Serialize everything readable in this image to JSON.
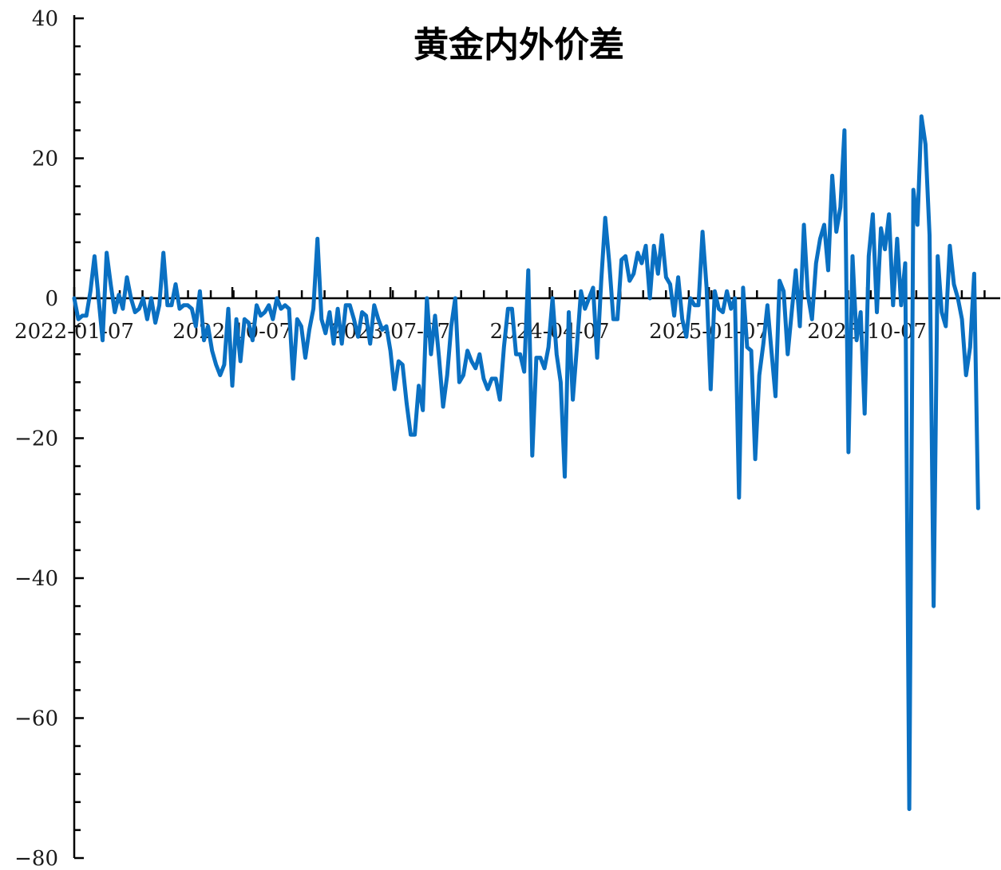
{
  "chart_data": {
    "type": "line",
    "title": "黄金内外价差",
    "xlabel": "",
    "ylabel": "",
    "ylim": [
      -80,
      40
    ],
    "y_ticks": [
      {
        "value": 40,
        "label": "40"
      },
      {
        "value": 20,
        "label": "20"
      },
      {
        "value": 0,
        "label": "0"
      },
      {
        "value": -20,
        "label": "−20"
      },
      {
        "value": -40,
        "label": "−40"
      },
      {
        "value": -60,
        "label": "−60"
      },
      {
        "value": -80,
        "label": "−80"
      }
    ],
    "xlim": [
      "2022-01-07",
      "2026-05-25"
    ],
    "x_ticks": [
      "2022-01-07",
      "2022-10-07",
      "2023-07-07",
      "2024-04-07",
      "2025-01-07",
      "2025-10-07"
    ],
    "grid": false,
    "legend": "none",
    "colors": {
      "series": "#0a70c2",
      "axis": "#000000"
    },
    "series": [
      {
        "name": "",
        "points": [
          [
            "2022-01-07",
            0
          ],
          [
            "2022-01-14",
            -3
          ],
          [
            "2022-01-21",
            -2.5
          ],
          [
            "2022-01-28",
            -2.5
          ],
          [
            "2022-02-04",
            1
          ],
          [
            "2022-02-11",
            6
          ],
          [
            "2022-02-18",
            0
          ],
          [
            "2022-02-25",
            -6
          ],
          [
            "2022-03-04",
            6.5
          ],
          [
            "2022-03-11",
            2
          ],
          [
            "2022-03-18",
            -2
          ],
          [
            "2022-03-25",
            0.5
          ],
          [
            "2022-04-01",
            -1.5
          ],
          [
            "2022-04-08",
            3
          ],
          [
            "2022-04-15",
            0
          ],
          [
            "2022-04-22",
            -2
          ],
          [
            "2022-04-29",
            -1.5
          ],
          [
            "2022-05-06",
            0
          ],
          [
            "2022-05-13",
            -3
          ],
          [
            "2022-05-20",
            0
          ],
          [
            "2022-05-27",
            -3.5
          ],
          [
            "2022-06-03",
            -1
          ],
          [
            "2022-06-10",
            6.5
          ],
          [
            "2022-06-17",
            -1
          ],
          [
            "2022-06-24",
            -1
          ],
          [
            "2022-07-01",
            2
          ],
          [
            "2022-07-08",
            -1.5
          ],
          [
            "2022-07-15",
            -1
          ],
          [
            "2022-07-22",
            -1
          ],
          [
            "2022-07-29",
            -1.5
          ],
          [
            "2022-08-05",
            -4
          ],
          [
            "2022-08-12",
            1
          ],
          [
            "2022-08-19",
            -6
          ],
          [
            "2022-08-26",
            -4
          ],
          [
            "2022-09-02",
            -7.5
          ],
          [
            "2022-09-09",
            -9.5
          ],
          [
            "2022-09-16",
            -11
          ],
          [
            "2022-09-23",
            -9.5
          ],
          [
            "2022-09-30",
            -1.5
          ],
          [
            "2022-10-07",
            -12.5
          ],
          [
            "2022-10-14",
            -3
          ],
          [
            "2022-10-21",
            -9
          ],
          [
            "2022-10-28",
            -3
          ],
          [
            "2022-11-04",
            -3.5
          ],
          [
            "2022-11-11",
            -6
          ],
          [
            "2022-11-18",
            -1
          ],
          [
            "2022-11-25",
            -2.5
          ],
          [
            "2022-12-02",
            -2
          ],
          [
            "2022-12-09",
            -1
          ],
          [
            "2022-12-16",
            -3
          ],
          [
            "2022-12-23",
            0
          ],
          [
            "2022-12-30",
            -1.5
          ],
          [
            "2023-01-06",
            -1
          ],
          [
            "2023-01-13",
            -1.5
          ],
          [
            "2023-01-20",
            -11.5
          ],
          [
            "2023-01-27",
            -3
          ],
          [
            "2023-02-03",
            -4
          ],
          [
            "2023-02-10",
            -8.5
          ],
          [
            "2023-02-17",
            -4.5
          ],
          [
            "2023-02-24",
            -1.5
          ],
          [
            "2023-03-03",
            8.5
          ],
          [
            "2023-03-10",
            -3
          ],
          [
            "2023-03-17",
            -5
          ],
          [
            "2023-03-24",
            -2
          ],
          [
            "2023-03-31",
            -6.5
          ],
          [
            "2023-04-07",
            -1.5
          ],
          [
            "2023-04-14",
            -6.5
          ],
          [
            "2023-04-21",
            -1
          ],
          [
            "2023-04-28",
            -1
          ],
          [
            "2023-05-05",
            -3
          ],
          [
            "2023-05-12",
            -5.5
          ],
          [
            "2023-05-19",
            -2
          ],
          [
            "2023-05-26",
            -2.5
          ],
          [
            "2023-06-02",
            -6.5
          ],
          [
            "2023-06-09",
            -1
          ],
          [
            "2023-06-16",
            -3
          ],
          [
            "2023-06-23",
            -4.5
          ],
          [
            "2023-06-30",
            -4
          ],
          [
            "2023-07-07",
            -7.5
          ],
          [
            "2023-07-14",
            -13
          ],
          [
            "2023-07-21",
            -9
          ],
          [
            "2023-07-28",
            -9.5
          ],
          [
            "2023-08-04",
            -15
          ],
          [
            "2023-08-11",
            -19.5
          ],
          [
            "2023-08-18",
            -19.5
          ],
          [
            "2023-08-25",
            -12.5
          ],
          [
            "2023-09-01",
            -16
          ],
          [
            "2023-09-08",
            0
          ],
          [
            "2023-09-15",
            -8
          ],
          [
            "2023-09-22",
            -2.5
          ],
          [
            "2023-09-29",
            -8.5
          ],
          [
            "2023-10-06",
            -15.5
          ],
          [
            "2023-10-13",
            -11
          ],
          [
            "2023-10-20",
            -4
          ],
          [
            "2023-10-27",
            0
          ],
          [
            "2023-11-03",
            -12
          ],
          [
            "2023-11-10",
            -11
          ],
          [
            "2023-11-17",
            -7.5
          ],
          [
            "2023-11-24",
            -9
          ],
          [
            "2023-12-01",
            -10
          ],
          [
            "2023-12-08",
            -8
          ],
          [
            "2023-12-15",
            -11.5
          ],
          [
            "2023-12-22",
            -13
          ],
          [
            "2023-12-29",
            -11.5
          ],
          [
            "2024-01-05",
            -11.5
          ],
          [
            "2024-01-12",
            -14.5
          ],
          [
            "2024-01-19",
            -7
          ],
          [
            "2024-01-26",
            -1.5
          ],
          [
            "2024-02-02",
            -1.5
          ],
          [
            "2024-02-09",
            -8
          ],
          [
            "2024-02-16",
            -8
          ],
          [
            "2024-02-23",
            -10.5
          ],
          [
            "2024-03-01",
            4
          ],
          [
            "2024-03-08",
            -22.5
          ],
          [
            "2024-03-15",
            -8.5
          ],
          [
            "2024-03-22",
            -8.5
          ],
          [
            "2024-03-29",
            -10
          ],
          [
            "2024-04-05",
            -7
          ],
          [
            "2024-04-12",
            0
          ],
          [
            "2024-04-19",
            -8
          ],
          [
            "2024-04-26",
            -12
          ],
          [
            "2024-05-03",
            -25.5
          ],
          [
            "2024-05-10",
            -2
          ],
          [
            "2024-05-17",
            -14.5
          ],
          [
            "2024-05-24",
            -7
          ],
          [
            "2024-05-31",
            1
          ],
          [
            "2024-06-07",
            -1.5
          ],
          [
            "2024-06-14",
            0
          ],
          [
            "2024-06-21",
            1.5
          ],
          [
            "2024-06-28",
            -8.5
          ],
          [
            "2024-07-05",
            2.5
          ],
          [
            "2024-07-12",
            11.5
          ],
          [
            "2024-07-19",
            5
          ],
          [
            "2024-07-26",
            -3
          ],
          [
            "2024-08-02",
            -3
          ],
          [
            "2024-08-09",
            5.5
          ],
          [
            "2024-08-16",
            6
          ],
          [
            "2024-08-23",
            2.5
          ],
          [
            "2024-08-30",
            3.5
          ],
          [
            "2024-09-06",
            6.5
          ],
          [
            "2024-09-13",
            5
          ],
          [
            "2024-09-20",
            7.5
          ],
          [
            "2024-09-27",
            0
          ],
          [
            "2024-10-04",
            7.5
          ],
          [
            "2024-10-11",
            3.5
          ],
          [
            "2024-10-18",
            9
          ],
          [
            "2024-10-25",
            3
          ],
          [
            "2024-11-01",
            2
          ],
          [
            "2024-11-08",
            -2.5
          ],
          [
            "2024-11-15",
            3
          ],
          [
            "2024-11-22",
            -3
          ],
          [
            "2024-11-29",
            -5.5
          ],
          [
            "2024-12-06",
            0
          ],
          [
            "2024-12-13",
            -1
          ],
          [
            "2024-12-20",
            -1
          ],
          [
            "2024-12-27",
            9.5
          ],
          [
            "2025-01-03",
            1.5
          ],
          [
            "2025-01-10",
            -13
          ],
          [
            "2025-01-17",
            1
          ],
          [
            "2025-01-24",
            -1.5
          ],
          [
            "2025-01-31",
            -2
          ],
          [
            "2025-02-07",
            1
          ],
          [
            "2025-02-14",
            -1.5
          ],
          [
            "2025-02-21",
            0
          ],
          [
            "2025-02-28",
            -28.5
          ],
          [
            "2025-03-07",
            1.5
          ],
          [
            "2025-03-14",
            -7
          ],
          [
            "2025-03-21",
            -7.5
          ],
          [
            "2025-03-28",
            -23
          ],
          [
            "2025-04-04",
            -11
          ],
          [
            "2025-04-11",
            -6.5
          ],
          [
            "2025-04-18",
            -1
          ],
          [
            "2025-04-25",
            -7.5
          ],
          [
            "2025-05-02",
            -14
          ],
          [
            "2025-05-09",
            2.5
          ],
          [
            "2025-05-16",
            1
          ],
          [
            "2025-05-23",
            -8
          ],
          [
            "2025-05-30",
            -2
          ],
          [
            "2025-06-06",
            4
          ],
          [
            "2025-06-13",
            -4
          ],
          [
            "2025-06-20",
            10.5
          ],
          [
            "2025-06-27",
            0.5
          ],
          [
            "2025-07-04",
            -3
          ],
          [
            "2025-07-11",
            5
          ],
          [
            "2025-07-18",
            8.5
          ],
          [
            "2025-07-25",
            10.5
          ],
          [
            "2025-08-01",
            4
          ],
          [
            "2025-08-08",
            17.5
          ],
          [
            "2025-08-15",
            9.5
          ],
          [
            "2025-08-22",
            13
          ],
          [
            "2025-08-29",
            24
          ],
          [
            "2025-09-05",
            -22
          ],
          [
            "2025-09-12",
            6
          ],
          [
            "2025-09-19",
            -6
          ],
          [
            "2025-09-26",
            -2
          ],
          [
            "2025-10-03",
            -16.5
          ],
          [
            "2025-10-10",
            6
          ],
          [
            "2025-10-17",
            12
          ],
          [
            "2025-10-24",
            -2
          ],
          [
            "2025-10-31",
            10
          ],
          [
            "2025-11-07",
            7
          ],
          [
            "2025-11-14",
            12
          ],
          [
            "2025-11-21",
            -1
          ],
          [
            "2025-11-28",
            8.5
          ],
          [
            "2025-12-05",
            -1
          ],
          [
            "2025-12-12",
            5
          ],
          [
            "2025-12-19",
            -73
          ],
          [
            "2025-12-26",
            15.5
          ],
          [
            "2026-01-02",
            10.5
          ],
          [
            "2026-01-09",
            26
          ],
          [
            "2026-01-16",
            22
          ],
          [
            "2026-01-23",
            9
          ],
          [
            "2026-01-30",
            -44
          ],
          [
            "2026-02-06",
            6
          ],
          [
            "2026-02-13",
            -2
          ],
          [
            "2026-02-20",
            -4
          ],
          [
            "2026-02-27",
            7.5
          ],
          [
            "2026-03-06",
            2
          ],
          [
            "2026-03-13",
            0
          ],
          [
            "2026-03-20",
            -3
          ],
          [
            "2026-03-27",
            -11
          ],
          [
            "2026-04-03",
            -7
          ],
          [
            "2026-04-10",
            3.5
          ],
          [
            "2026-04-17",
            -30
          ]
        ]
      }
    ]
  }
}
